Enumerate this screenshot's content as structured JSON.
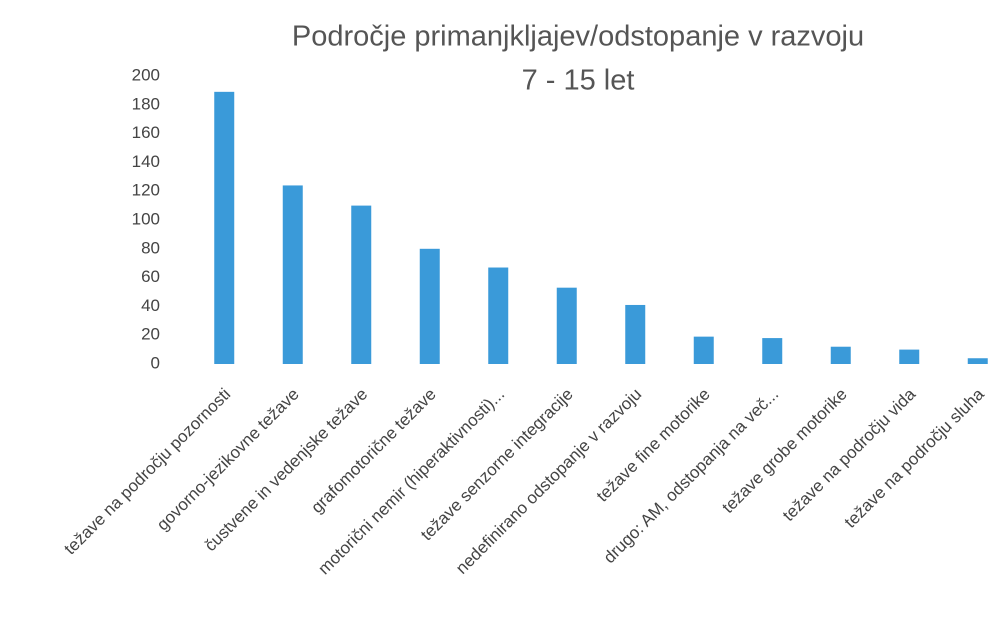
{
  "chart_data": {
    "type": "bar",
    "title": "Področje primanjkljajev/odstopanje v razvoju",
    "subtitle": "7 - 15 let",
    "categories": [
      "težave na področju pozornosti",
      "govorno-jezikovne težave",
      "čustvene in vedenjske težave",
      "grafomotorične težave",
      "motorični nemir (hiperaktivnosti)...",
      "težave senzorne integracije",
      "nedefinirano odstopanje v razvoju",
      "težave fine motorike",
      "drugo: AM, odstopanja na več...",
      "težave grobe motorike",
      "težave na področju vida",
      "težave na področju sluha"
    ],
    "values": [
      189,
      124,
      110,
      80,
      67,
      53,
      41,
      19,
      18,
      12,
      10,
      4
    ],
    "color": "#3a9ad9",
    "ylim": [
      0,
      200
    ],
    "yticks": [
      0,
      20,
      40,
      60,
      80,
      100,
      120,
      140,
      160,
      180,
      200
    ],
    "grid": false
  }
}
